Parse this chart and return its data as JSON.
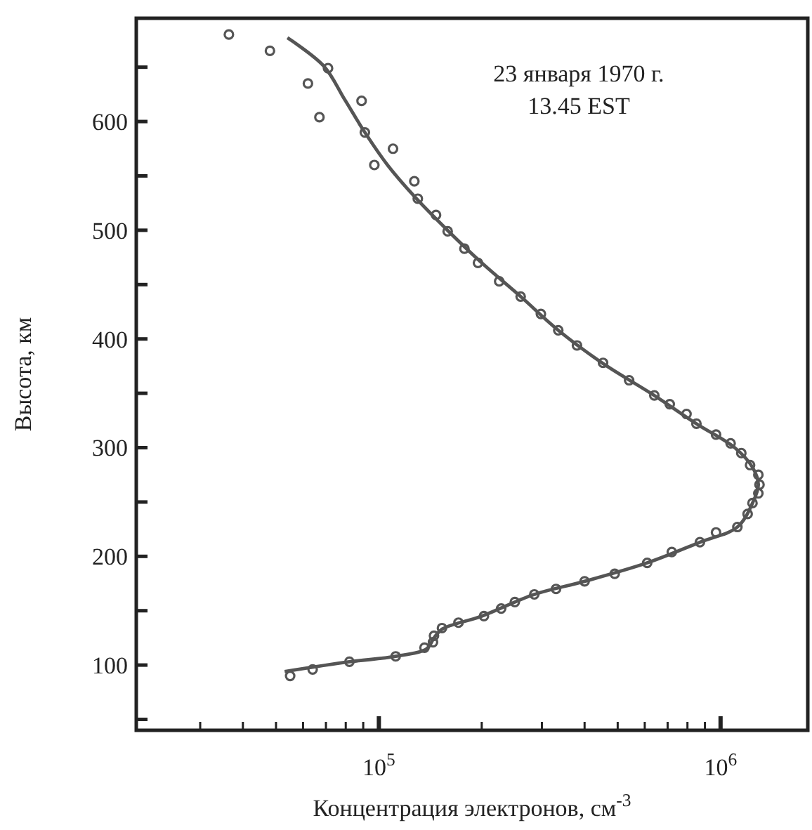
{
  "chart_data": {
    "type": "scatter",
    "xlabel": "Концентрация электронов, см$^{-3}$",
    "ylabel": "Высота, км",
    "log": "x",
    "grid": false,
    "xlim": [
      19500,
      1800000
    ],
    "ylim": [
      40,
      695
    ],
    "xticks": [
      {
        "value": 30000,
        "label": null
      },
      {
        "value": 40000,
        "label": null
      },
      {
        "value": 50000,
        "label": null
      },
      {
        "value": 60000,
        "label": null
      },
      {
        "value": 70000,
        "label": null
      },
      {
        "value": 80000,
        "label": null
      },
      {
        "value": 90000,
        "label": null
      },
      {
        "value": 100000,
        "label": "10$^{5}$"
      },
      {
        "value": 200000,
        "label": null
      },
      {
        "value": 300000,
        "label": null
      },
      {
        "value": 400000,
        "label": null
      },
      {
        "value": 500000,
        "label": null
      },
      {
        "value": 600000,
        "label": null
      },
      {
        "value": 700000,
        "label": null
      },
      {
        "value": 800000,
        "label": null
      },
      {
        "value": 900000,
        "label": null
      },
      {
        "value": 1000000,
        "label": "10$^{6}$"
      }
    ],
    "yticks": [
      {
        "value": 50,
        "label": null
      },
      100,
      {
        "value": 150,
        "label": null
      },
      200,
      {
        "value": 250,
        "label": null
      },
      300,
      {
        "value": 350,
        "label": null
      },
      400,
      {
        "value": 450,
        "label": null
      },
      500,
      {
        "value": 550,
        "label": null
      },
      600,
      {
        "value": 650,
        "label": null
      }
    ],
    "annotations": [
      "23 января 1970 г.",
      "13.45 EST"
    ],
    "series": [
      {
        "marker": "circle",
        "color": "#555555",
        "x": [
          36400,
          48000,
          71000,
          62000,
          89000,
          67000,
          91000,
          110000,
          97000,
          127000,
          130000,
          147000,
          159000,
          178000,
          195000,
          225000,
          260000,
          298000,
          335000,
          380000,
          453000,
          540000,
          640000,
          710000,
          795000,
          850000,
          970000,
          1070000,
          1150000,
          1220000,
          1290000,
          1300000,
          1290000,
          1240000,
          1200000,
          1120000,
          970000,
          870000,
          720000,
          610000,
          490000,
          400000,
          330000,
          285000,
          250000,
          228000,
          203000,
          171000,
          153000,
          145000,
          144000,
          136000,
          112000,
          82000,
          64000,
          55000
        ],
        "values": [
          680,
          665,
          649,
          635,
          619,
          604,
          590,
          575,
          560,
          545,
          529,
          514,
          499,
          483,
          470,
          453,
          439,
          423,
          408,
          394,
          378,
          362,
          348,
          340,
          331,
          322,
          312,
          304,
          295,
          284,
          275,
          266,
          258,
          249,
          239,
          227,
          222,
          213,
          204,
          194,
          184,
          177,
          170,
          165,
          158,
          152,
          145,
          139,
          134,
          127,
          121,
          116,
          108,
          103,
          96,
          90
        ]
      },
      {
        "type": "line",
        "line_style": "solid",
        "color": "#555555",
        "x": [
          53000,
          82000,
          112000,
          138000,
          145000,
          153000,
          200000,
          285000,
          400000,
          610000,
          870000,
          1120000,
          1240000,
          1290000,
          1240000,
          1100000,
          850000,
          640000,
          450000,
          335000,
          260000,
          200000,
          160000,
          128000,
          106000,
          91000,
          79500,
          69000,
          54000
        ],
        "values": [
          94,
          103,
          108,
          115,
          125,
          133,
          145,
          165,
          177,
          194,
          213,
          227,
          249,
          266,
          282,
          300,
          322,
          348,
          378,
          408,
          439,
          470,
          499,
          530,
          560,
          590,
          620,
          651,
          677
        ]
      }
    ]
  }
}
